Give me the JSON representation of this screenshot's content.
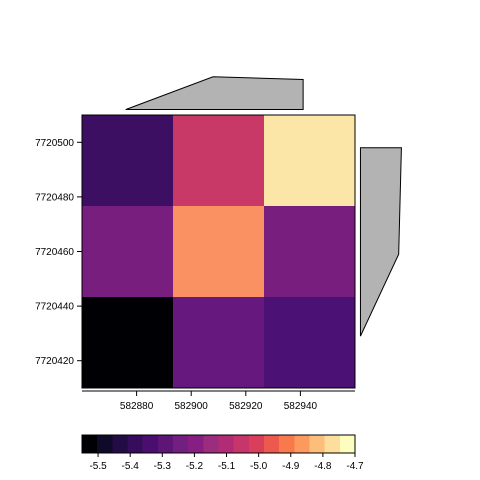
{
  "chart_data": {
    "type": "heatmap",
    "title": "",
    "xlabel": "",
    "ylabel": "",
    "xlim": [
      582860,
      582960
    ],
    "ylim": [
      7720410,
      7720510
    ],
    "x_ticks": [
      582880,
      582900,
      582920,
      582940
    ],
    "x_tick_labels": [
      "582880",
      "582900",
      "582920",
      "582940"
    ],
    "y_ticks": [
      7720420,
      7720440,
      7720460,
      7720480,
      7720500
    ],
    "y_tick_labels": [
      "7720420",
      "7720440",
      "7720460",
      "7720480",
      "7720500"
    ],
    "x_edges": [
      582860,
      582893.33,
      582926.67,
      582960
    ],
    "y_edges": [
      7720410,
      7720443.33,
      7720476.67,
      7720510
    ],
    "grid": false,
    "colormap": "magma",
    "values": [
      [
        -5.35,
        -4.98,
        -4.72
      ],
      [
        -5.19,
        -4.82,
        -5.19
      ],
      [
        -5.55,
        -5.24,
        -5.31
      ]
    ],
    "polygons": [
      {
        "fill": "#b3b3b3",
        "stroke": "#000000",
        "points": [
          [
            582876,
            7720512
          ],
          [
            582908,
            7720524
          ],
          [
            582941,
            7720523
          ],
          [
            582941,
            7720512
          ]
        ]
      },
      {
        "fill": "#b3b3b3",
        "stroke": "#000000",
        "points": [
          [
            582962,
            7720498
          ],
          [
            582962,
            7720429
          ],
          [
            582976,
            7720459
          ],
          [
            582977,
            7720498
          ]
        ]
      }
    ],
    "colorbar": {
      "range": [
        -5.55,
        -4.7
      ],
      "colors": [
        "#000004",
        "#0f0a27",
        "#230c45",
        "#360d5d",
        "#4a0f6e",
        "#5e1676",
        "#721f81",
        "#871e82",
        "#9c2d7e",
        "#b22b75",
        "#c7366a",
        "#da3e5d",
        "#ec5a4f",
        "#f7794c",
        "#fc9a5e",
        "#febe7b",
        "#fede9d",
        "#fcfdbf"
      ],
      "ticks": [
        -5.5,
        -5.4,
        -5.3,
        -5.2,
        -5.1,
        -5.0,
        -4.9,
        -4.8,
        -4.7
      ],
      "tick_labels": [
        "-5.5",
        "-5.4",
        "-5.3",
        "-5.2",
        "-5.1",
        "-5.0",
        "-4.9",
        "-4.8",
        "-4.7"
      ]
    }
  }
}
